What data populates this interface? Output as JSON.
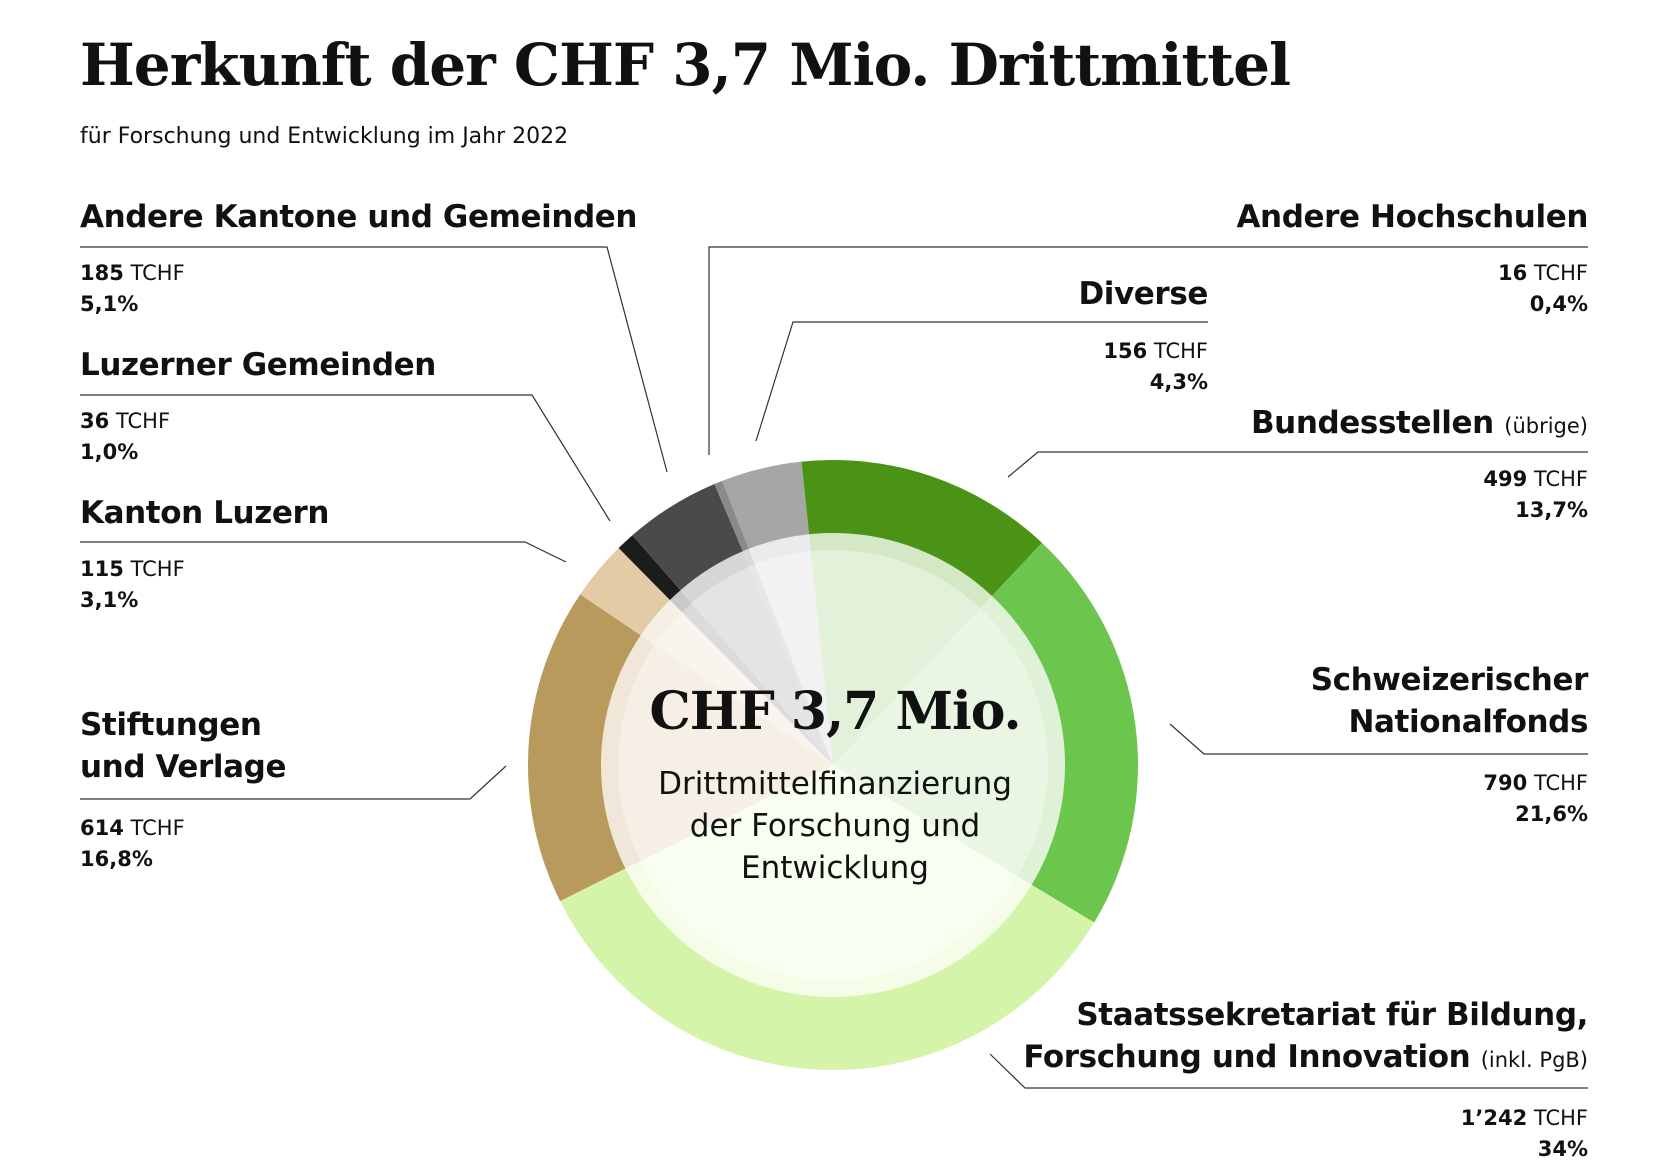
{
  "title": "Herkunft der CHF 3,7 Mio. Drittmittel",
  "subtitle": "für Forschung und Entwicklung im Jahr 2022",
  "unit": "TCHF",
  "center": {
    "amount": "CHF 3,7 Mio.",
    "description": "Drittmittelfinanzierung\nder Forschung und\nEntwicklung"
  },
  "chart_data": {
    "type": "pie",
    "variant": "donut",
    "title": "Herkunft der CHF 3,7 Mio. Drittmittel",
    "subtitle": "für Forschung und Entwicklung im Jahr 2022",
    "categories": [
      "Diverse",
      "Bundesstellen (übrige)",
      "Schweizerischer Nationalfonds",
      "Staatssekretariat für Bildung, Forschung und Innovation (inkl. PgB)",
      "Stiftungen und Verlage",
      "Kanton Luzern",
      "Luzerner Gemeinden",
      "Andere Kantone und Gemeinden",
      "Andere Hochschulen"
    ],
    "values": [
      156,
      499,
      790,
      1242,
      614,
      115,
      36,
      185,
      16
    ],
    "unit": "TCHF",
    "legend": "labels-around"
  },
  "segments": [
    {
      "id": "diverse",
      "label_lines": [
        "Diverse"
      ],
      "note": "",
      "value": 156,
      "value_text": "156",
      "percent": "4,3%",
      "color": "#a6a6a6",
      "inner_color": "#ebebeb",
      "side": "right"
    },
    {
      "id": "bundesstellen",
      "label_lines": [
        "Bundesstellen"
      ],
      "note": "(übrige)",
      "value": 499,
      "value_text": "499",
      "percent": "13,7%",
      "color": "#4b9317",
      "inner_color": "#d4e8c6",
      "side": "right"
    },
    {
      "id": "snf",
      "label_lines": [
        "Schweizerischer",
        "Nationalfonds"
      ],
      "note": "",
      "value": 790,
      "value_text": "790",
      "percent": "21,6%",
      "color": "#6cc54d",
      "inner_color": "#dff1d6",
      "side": "right"
    },
    {
      "id": "sbfi",
      "label_lines": [
        "Staatssekretariat für Bildung,",
        "Forschung und Innovation"
      ],
      "note": "(inkl. PgB)",
      "value": 1242,
      "value_text": "1’242",
      "percent": "34%",
      "color": "#d4f5a9",
      "inner_color": "#f5fde9",
      "side": "right"
    },
    {
      "id": "stiftungen",
      "label_lines": [
        "Stiftungen",
        "und Verlage"
      ],
      "note": "",
      "value": 614,
      "value_text": "614",
      "percent": "16,8%",
      "color": "#b89a5c",
      "inner_color": "#f0e7d9",
      "side": "left"
    },
    {
      "id": "kanton-luzern",
      "label_lines": [
        "Kanton Luzern"
      ],
      "note": "",
      "value": 115,
      "value_text": "115",
      "percent": "3,1%",
      "color": "#e2cba5",
      "inner_color": "#f6efe4",
      "side": "left"
    },
    {
      "id": "luzerner-gemeinden",
      "label_lines": [
        "Luzerner Gemeinden"
      ],
      "note": "",
      "value": 36,
      "value_text": "36",
      "percent": "1,0%",
      "color": "#1c1c1c",
      "inner_color": "#c8c8c8",
      "side": "left"
    },
    {
      "id": "andere-kantone",
      "label_lines": [
        "Andere Kantone und Gemeinden"
      ],
      "note": "",
      "value": 185,
      "value_text": "185",
      "percent": "5,1%",
      "color": "#4a4a4a",
      "inner_color": "#d6d6d6",
      "side": "left"
    },
    {
      "id": "andere-hochschulen",
      "label_lines": [
        "Andere Hochschulen"
      ],
      "note": "",
      "value": 16,
      "value_text": "16",
      "percent": "0,4%",
      "color": "#8a8a8a",
      "inner_color": "#dadada",
      "side": "right"
    }
  ]
}
